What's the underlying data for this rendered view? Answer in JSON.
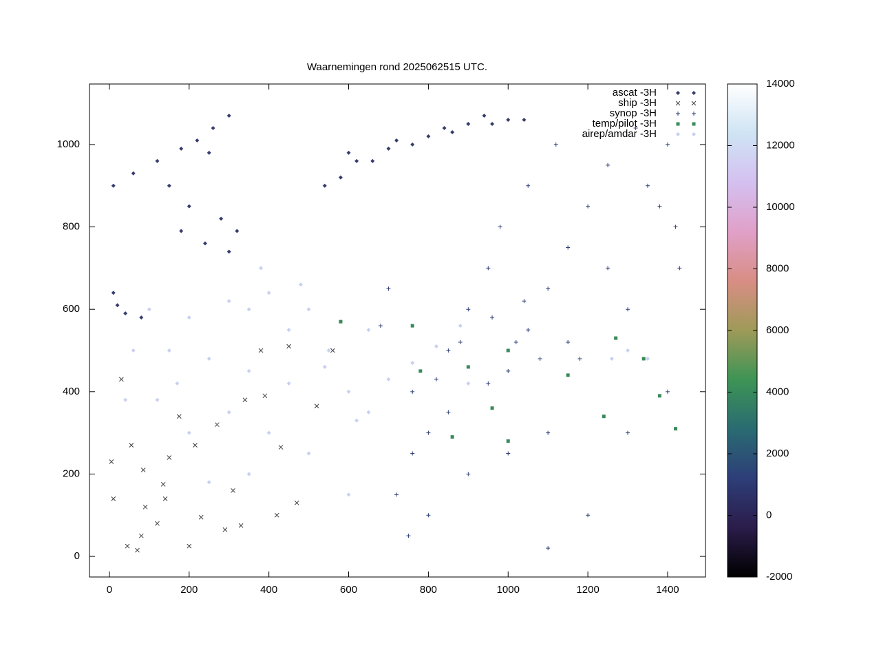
{
  "chart_data": {
    "type": "scatter",
    "title": "Waarnemingen rond 2025062515 UTC.",
    "xlim": [
      -50,
      1495
    ],
    "ylim": [
      -50,
      1147
    ],
    "xticks": [
      0,
      200,
      400,
      600,
      800,
      1000,
      1200,
      1400
    ],
    "yticks": [
      0,
      200,
      400,
      600,
      800,
      1000
    ],
    "grid": false,
    "legend": "top-right",
    "cblim": [
      -2000,
      14000
    ],
    "cbticks": [
      -2000,
      0,
      2000,
      4000,
      6000,
      8000,
      10000,
      12000,
      14000
    ],
    "cbcolors": [
      "#000000",
      "#2b1c4a",
      "#2d3e78",
      "#2a6b72",
      "#3d9455",
      "#9e9a58",
      "#d88e84",
      "#e0a0c8",
      "#d4c0f0",
      "#cfe4f4",
      "#ffffff"
    ],
    "series": [
      {
        "name": "ascat -3H",
        "color": "#363c6e",
        "marker": "diamond",
        "x": [
          10,
          60,
          120,
          180,
          220,
          260,
          300,
          250,
          150,
          200,
          280,
          320,
          180,
          240,
          300,
          580,
          620,
          660,
          700,
          760,
          800,
          860,
          900,
          960,
          1000,
          1040,
          540,
          600,
          720,
          840,
          940,
          10,
          20,
          40,
          80
        ],
        "y": [
          900,
          930,
          960,
          990,
          1010,
          1040,
          1070,
          980,
          900,
          850,
          820,
          790,
          790,
          760,
          740,
          920,
          960,
          960,
          990,
          1000,
          1020,
          1030,
          1050,
          1050,
          1060,
          1060,
          900,
          980,
          1010,
          1040,
          1070,
          640,
          610,
          590,
          580
        ]
      },
      {
        "name": "ship -3H",
        "color": "#404040",
        "marker": "x",
        "x": [
          5,
          30,
          45,
          70,
          85,
          90,
          120,
          140,
          150,
          175,
          200,
          230,
          270,
          290,
          330,
          340,
          390,
          420,
          450,
          470,
          560,
          80,
          55,
          10,
          135,
          215,
          310,
          380,
          430,
          520
        ],
        "y": [
          230,
          430,
          25,
          15,
          210,
          120,
          80,
          140,
          240,
          340,
          25,
          95,
          320,
          65,
          75,
          380,
          390,
          100,
          510,
          130,
          500,
          50,
          270,
          140,
          175,
          270,
          160,
          500,
          265,
          365
        ]
      },
      {
        "name": "synop -3H",
        "color": "#2d3e78",
        "marker": "plus",
        "x": [
          720,
          760,
          800,
          850,
          900,
          950,
          1000,
          1050,
          1100,
          1150,
          1200,
          1250,
          1300,
          1350,
          1400,
          1420,
          1100,
          1000,
          900,
          800,
          750,
          1100,
          1200,
          1300,
          1400,
          980,
          1050,
          1120,
          1250,
          850,
          950,
          1020,
          1080,
          1150,
          760,
          700,
          680,
          1430,
          1380,
          1320,
          820,
          880,
          960,
          1040,
          1180
        ],
        "y": [
          150,
          250,
          300,
          500,
          600,
          700,
          450,
          550,
          650,
          750,
          850,
          700,
          600,
          900,
          1000,
          800,
          300,
          250,
          200,
          100,
          50,
          20,
          100,
          300,
          400,
          800,
          900,
          1000,
          950,
          350,
          420,
          520,
          480,
          520,
          400,
          650,
          560,
          700,
          850,
          1040,
          430,
          520,
          580,
          620,
          480
        ]
      },
      {
        "name": "temp/pilot -3H",
        "color": "#3a8a5a",
        "marker": "square",
        "x": [
          580,
          760,
          900,
          1000,
          1150,
          1380,
          1420,
          860,
          960,
          780,
          1240,
          1000,
          1340,
          1270
        ],
        "y": [
          570,
          560,
          460,
          500,
          440,
          390,
          310,
          290,
          360,
          450,
          340,
          280,
          480,
          530
        ]
      },
      {
        "name": "airep/amdar -3H",
        "color": "#c8d0f0",
        "marker": "diamond",
        "x": [
          100,
          200,
          300,
          400,
          500,
          150,
          250,
          350,
          450,
          550,
          600,
          650,
          300,
          400,
          200,
          120,
          500,
          350,
          250,
          600,
          700,
          650,
          900,
          1300,
          1260,
          1350,
          450,
          480,
          380,
          350,
          60,
          40,
          170,
          540,
          620,
          820,
          760,
          880
        ],
        "y": [
          600,
          580,
          620,
          640,
          600,
          500,
          480,
          450,
          420,
          500,
          400,
          350,
          350,
          300,
          300,
          380,
          250,
          200,
          180,
          150,
          430,
          550,
          420,
          500,
          480,
          480,
          550,
          660,
          700,
          600,
          500,
          380,
          420,
          460,
          330,
          510,
          470,
          560
        ]
      }
    ]
  }
}
